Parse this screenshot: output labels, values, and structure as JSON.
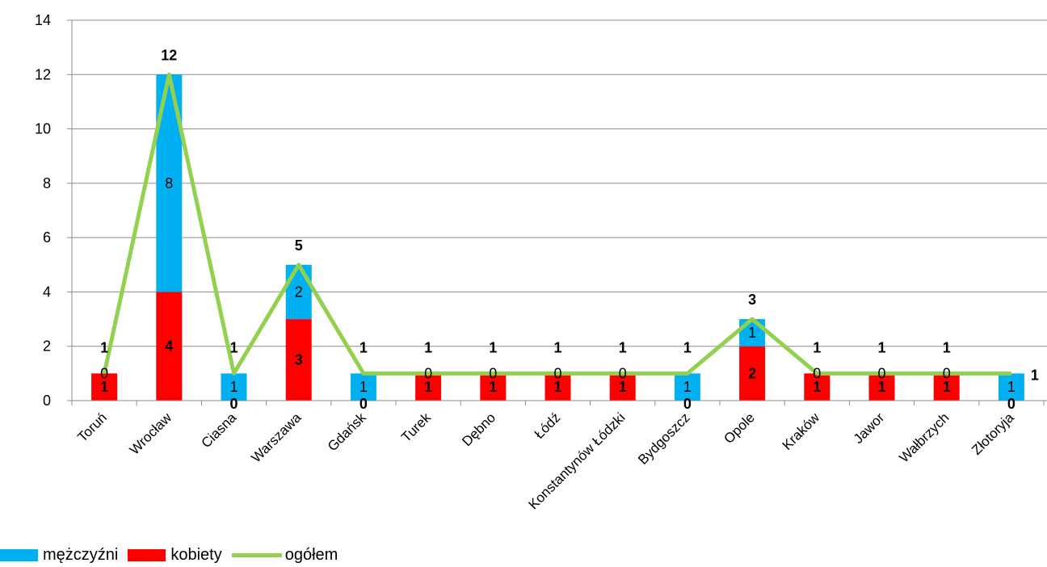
{
  "chart_data": {
    "type": "bar",
    "stacked": true,
    "categories": [
      "Toruń",
      "Wrocław",
      "Ciasna",
      "Warszawa",
      "Gdańsk",
      "Turek",
      "Dębno",
      "Łódź",
      "Konstantynów Łódzki",
      "Bydgoszcz",
      "Opole",
      "Kraków",
      "Jawor",
      "Wałbrzych",
      "Złotoryja"
    ],
    "series": [
      {
        "name": "mężczyźni",
        "kind": "bar",
        "color": "#00B0F0",
        "values": [
          0,
          8,
          1,
          2,
          1,
          0,
          0,
          0,
          0,
          1,
          1,
          0,
          0,
          0,
          1
        ]
      },
      {
        "name": "kobiety",
        "kind": "bar",
        "color": "#FF0000",
        "values": [
          1,
          4,
          0,
          3,
          0,
          1,
          1,
          1,
          1,
          0,
          2,
          1,
          1,
          1,
          0
        ]
      },
      {
        "name": "ogółem",
        "kind": "line",
        "color": "#92D050",
        "values": [
          1,
          12,
          1,
          5,
          1,
          1,
          1,
          1,
          1,
          1,
          3,
          1,
          1,
          1,
          1
        ]
      }
    ],
    "ylim": [
      0,
      14
    ],
    "yticks": [
      0,
      2,
      4,
      6,
      8,
      10,
      12,
      14
    ],
    "grid": true,
    "legend_position": "bottom-left",
    "xlabel": "",
    "ylabel": ""
  }
}
